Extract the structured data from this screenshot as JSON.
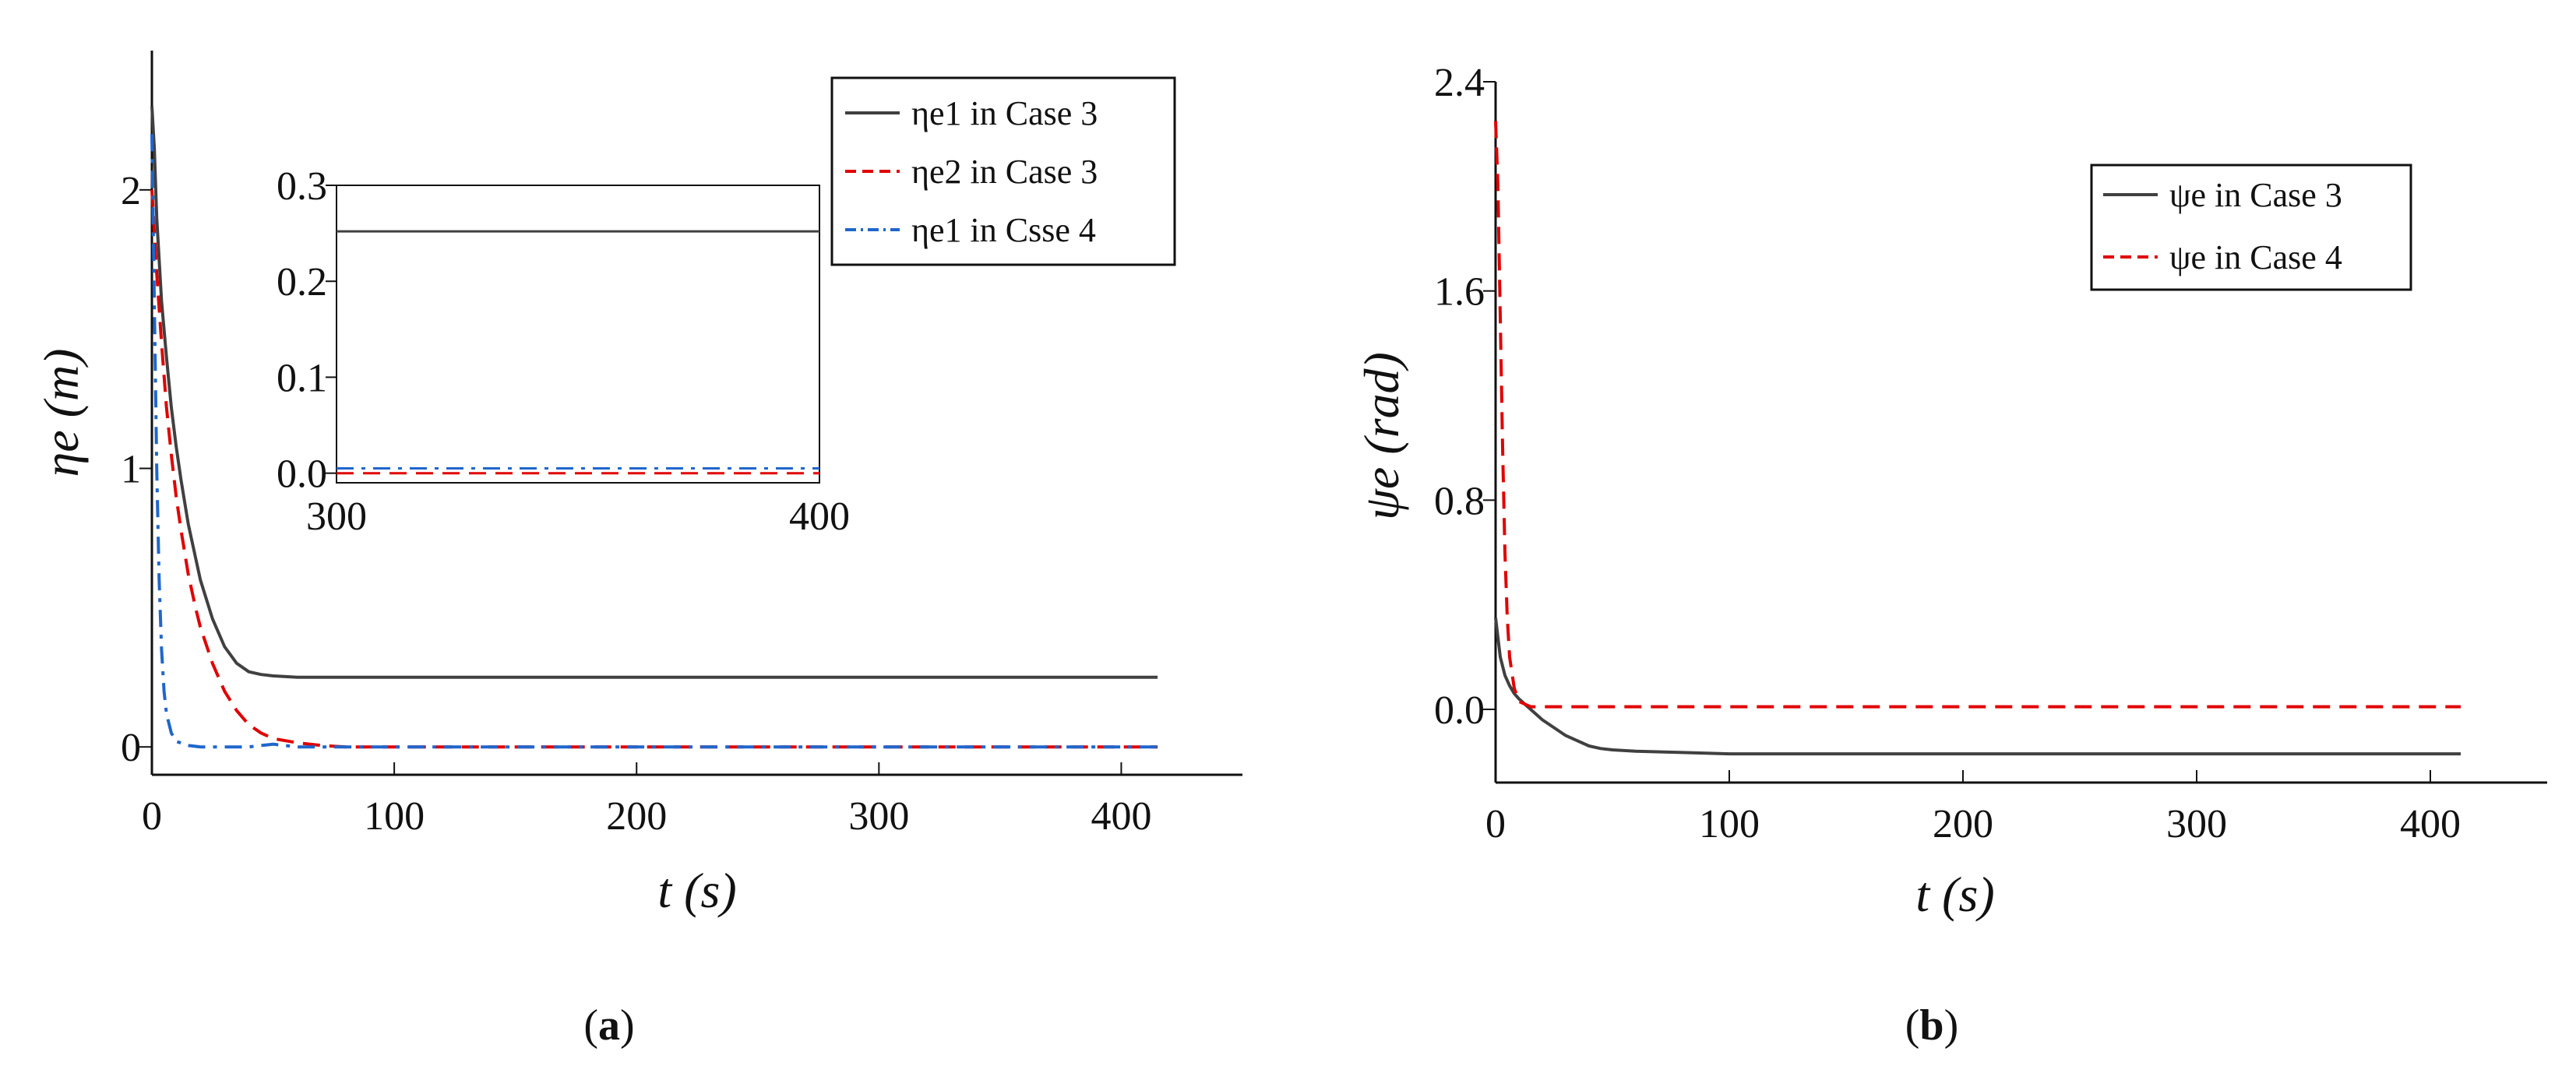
{
  "chart_data": [
    {
      "id": "a",
      "type": "line",
      "caption": {
        "open": "(",
        "letter": "a",
        "close": ")"
      },
      "xlabel": "t (s)",
      "ylabel": "ηe (m)",
      "xlim": [
        0,
        450
      ],
      "ylim": [
        -0.1,
        2.5
      ],
      "xticks": [
        0,
        100,
        200,
        300,
        400
      ],
      "yticks": [
        0,
        1,
        2
      ],
      "series": [
        {
          "name": "ηe1 in Case 3",
          "color": "#404040",
          "dash": "solid",
          "x": [
            0,
            1,
            2,
            4,
            6,
            8,
            10,
            12,
            15,
            18,
            20,
            25,
            30,
            35,
            40,
            45,
            50,
            60,
            80,
            100,
            150,
            200,
            250,
            300,
            350,
            400,
            415
          ],
          "y": [
            2.3,
            2.15,
            1.9,
            1.6,
            1.4,
            1.22,
            1.08,
            0.96,
            0.8,
            0.68,
            0.6,
            0.46,
            0.36,
            0.3,
            0.27,
            0.26,
            0.255,
            0.25,
            0.25,
            0.25,
            0.25,
            0.25,
            0.25,
            0.25,
            0.25,
            0.25,
            0.25
          ]
        },
        {
          "name": "ηe2 in Case 3",
          "color": "#e00000",
          "dash": "dashed",
          "x": [
            0,
            1,
            2,
            4,
            6,
            8,
            10,
            12,
            15,
            18,
            20,
            25,
            30,
            35,
            40,
            45,
            50,
            60,
            70,
            80,
            100,
            150,
            200,
            250,
            300,
            350,
            400,
            415
          ],
          "y": [
            2.0,
            1.85,
            1.7,
            1.45,
            1.22,
            1.05,
            0.9,
            0.78,
            0.62,
            0.5,
            0.43,
            0.3,
            0.2,
            0.13,
            0.08,
            0.05,
            0.03,
            0.015,
            0.005,
            0,
            0,
            0,
            0,
            0,
            0,
            0,
            0,
            0
          ]
        },
        {
          "name": "ηe1 in Csse 4",
          "color": "#1f66cc",
          "dash": "dashdot",
          "x": [
            0,
            1,
            2,
            3,
            4,
            5,
            6,
            8,
            10,
            15,
            20,
            30,
            40,
            50,
            60,
            80,
            100,
            150,
            200,
            250,
            300,
            350,
            400,
            415
          ],
          "y": [
            2.2,
            1.6,
            1.0,
            0.6,
            0.35,
            0.2,
            0.12,
            0.05,
            0.02,
            0.005,
            0,
            0,
            0,
            0.01,
            0,
            0,
            0,
            0,
            0,
            0,
            0,
            0,
            0,
            0
          ]
        }
      ],
      "inset": {
        "xlim": [
          300,
          400
        ],
        "ylim": [
          -0.01,
          0.3
        ],
        "xticks": [
          300,
          400
        ],
        "yticks": [
          0.0,
          0.1,
          0.2,
          0.3
        ],
        "xtick_labels": [
          "300",
          "400"
        ],
        "ytick_labels": [
          "0.0",
          "0.1",
          "0.2",
          "0.3"
        ],
        "series": [
          {
            "color": "#404040",
            "dash": "solid",
            "x": [
              300,
              400
            ],
            "y": [
              0.252,
              0.252
            ]
          },
          {
            "color": "#e00000",
            "dash": "dashed",
            "x": [
              300,
              400
            ],
            "y": [
              0.0,
              0.0
            ]
          },
          {
            "color": "#1f66cc",
            "dash": "dashdot",
            "x": [
              300,
              400
            ],
            "y": [
              0.005,
              0.005
            ]
          }
        ]
      }
    },
    {
      "id": "b",
      "type": "line",
      "caption": {
        "open": "(",
        "letter": "b",
        "close": ")"
      },
      "xlabel": "t (s)",
      "ylabel": "ψe (rad)",
      "xlim": [
        0,
        450
      ],
      "ylim": [
        -0.28,
        2.4
      ],
      "xticks": [
        0,
        100,
        200,
        300,
        400
      ],
      "yticks": [
        0.0,
        0.8,
        1.6,
        2.4
      ],
      "ytick_labels": [
        "0.0",
        "0.8",
        "1.6",
        "2.4"
      ],
      "series": [
        {
          "name": "ψe in Case 3",
          "color": "#404040",
          "dash": "solid",
          "x": [
            0,
            2,
            4,
            6,
            8,
            10,
            15,
            20,
            25,
            30,
            35,
            40,
            45,
            50,
            60,
            80,
            100,
            150,
            200,
            250,
            300,
            350,
            400,
            413
          ],
          "y": [
            0.35,
            0.2,
            0.13,
            0.09,
            0.06,
            0.04,
            0.0,
            -0.04,
            -0.07,
            -0.1,
            -0.12,
            -0.14,
            -0.15,
            -0.155,
            -0.16,
            -0.165,
            -0.17,
            -0.17,
            -0.17,
            -0.17,
            -0.17,
            -0.17,
            -0.17,
            -0.17
          ]
        },
        {
          "name": "ψe in Case 4",
          "color": "#e00000",
          "dash": "dashed",
          "x": [
            0,
            1,
            2,
            3,
            4,
            5,
            6,
            8,
            10,
            15,
            20,
            30,
            50,
            100,
            150,
            200,
            250,
            300,
            350,
            400,
            413
          ],
          "y": [
            2.25,
            2.0,
            1.5,
            1.0,
            0.6,
            0.35,
            0.2,
            0.08,
            0.03,
            0.01,
            0.01,
            0.01,
            0.01,
            0.01,
            0.01,
            0.01,
            0.01,
            0.01,
            0.01,
            0.01,
            0.01
          ]
        }
      ]
    }
  ]
}
